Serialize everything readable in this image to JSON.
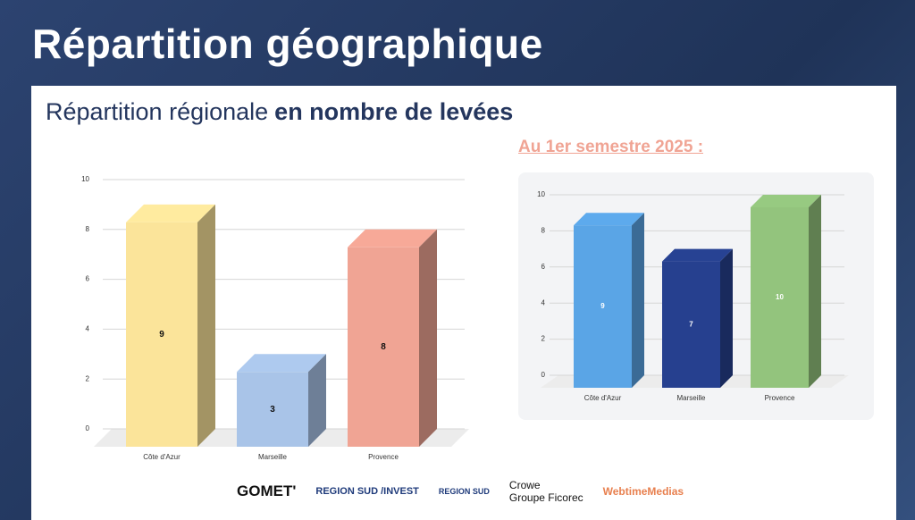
{
  "title": "Répartition géographique",
  "subtitle_plain": "Répartition régionale",
  "subtitle_bold": "en nombre de levées",
  "period": "Au 1er semestre 2025 :",
  "logos": [
    "GOMET'",
    "REGION SUD /INVEST",
    "REGION SUD",
    "Crowe",
    "Groupe Ficorec",
    "WebtimeMedias"
  ],
  "chart_data": [
    {
      "type": "bar",
      "categories": [
        "Côte d'Azur",
        "Marseille",
        "Provence"
      ],
      "values": [
        9,
        3,
        8
      ],
      "colors": [
        "#fbe49a",
        "#a9c4e8",
        "#f0a494"
      ],
      "value_label_color": "#111111",
      "ylim": [
        0,
        10
      ],
      "yticks": [
        0,
        2,
        4,
        6,
        8,
        10
      ],
      "grid": true
    },
    {
      "type": "bar",
      "categories": [
        "Côte d'Azur",
        "Marseille",
        "Provence"
      ],
      "values": [
        9,
        7,
        10
      ],
      "colors": [
        "#5aa5e6",
        "#26408f",
        "#93c47d"
      ],
      "value_label_color": "#ffffff",
      "ylim": [
        0,
        10
      ],
      "yticks": [
        0,
        2,
        4,
        6,
        8,
        10
      ],
      "grid": true
    }
  ]
}
